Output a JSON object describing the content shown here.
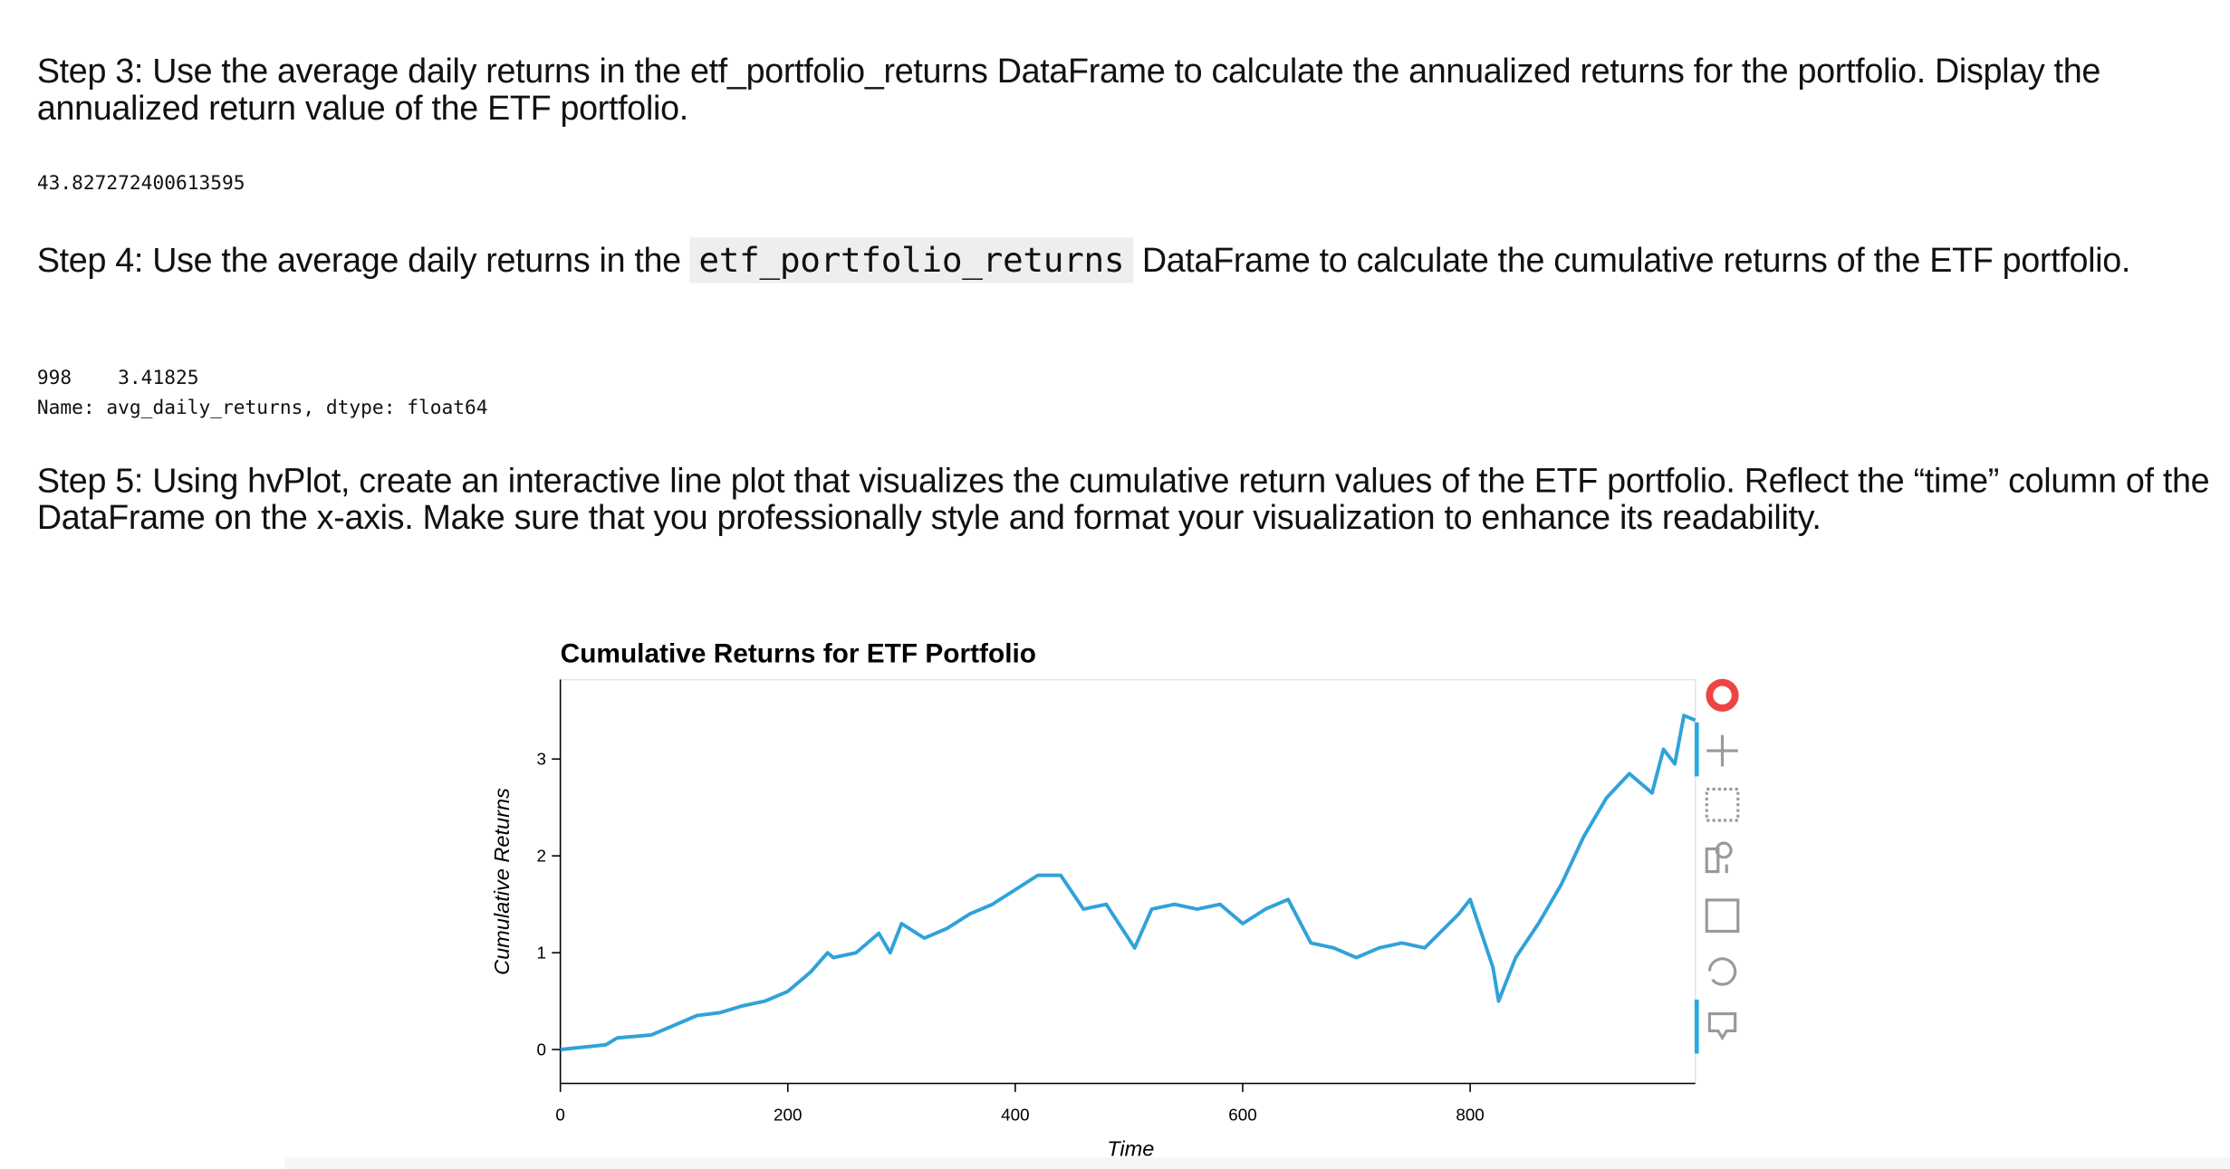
{
  "step3": {
    "heading": "Step 3: Use the average daily returns in the etf_portfolio_returns DataFrame to calculate the annualized returns for the portfolio. Display the annualized return value of the ETF portfolio.",
    "output": "43.827272400613595"
  },
  "step4": {
    "heading": [
      "Step 4: Use the average daily returns in the ",
      "etf_portfolio_returns",
      " DataFrame to calculate the cumulative returns of the ETF portfolio."
    ],
    "output": [
      "998    3.41825",
      "Name: avg_daily_returns, dtype: float64"
    ]
  },
  "step5": {
    "heading": "Step 5: Using hvPlot, create an interactive line plot that visualizes the cumulative return values of the ETF portfolio. Reflect the “time” column of the DataFrame on the x-axis. Make sure that you professionally style and format your visualization to enhance its readability."
  },
  "chart_data": {
    "type": "line",
    "title": "Cumulative Returns for ETF Portfolio",
    "x_label": "Time",
    "y_label": "Cumulative Returns",
    "series": [
      {
        "name": "avg_daily_returns",
        "color": "#30a2da",
        "x": [
          0,
          40,
          50,
          80,
          100,
          120,
          140,
          160,
          180,
          200,
          220,
          235,
          240,
          260,
          280,
          290,
          300,
          320,
          340,
          360,
          380,
          400,
          420,
          440,
          460,
          480,
          505,
          520,
          540,
          560,
          580,
          600,
          620,
          640,
          660,
          680,
          700,
          720,
          740,
          760,
          790,
          800,
          820,
          825,
          840,
          860,
          880,
          900,
          920,
          940,
          960,
          970,
          980,
          988,
          998
        ],
        "values": [
          0,
          0.05,
          0.12,
          0.15,
          0.25,
          0.35,
          0.38,
          0.45,
          0.5,
          0.6,
          0.8,
          1.0,
          0.95,
          1.0,
          1.2,
          1.0,
          1.3,
          1.15,
          1.25,
          1.4,
          1.5,
          1.65,
          1.8,
          1.8,
          1.45,
          1.5,
          1.05,
          1.45,
          1.5,
          1.45,
          1.5,
          1.3,
          1.45,
          1.55,
          1.1,
          1.05,
          0.95,
          1.05,
          1.1,
          1.05,
          1.4,
          1.55,
          0.85,
          0.5,
          0.95,
          1.3,
          1.7,
          2.2,
          2.6,
          2.85,
          2.65,
          3.1,
          2.95,
          3.45,
          3.4
        ]
      }
    ],
    "xlim": [
      0,
      998
    ],
    "ylim": [
      -0.35,
      3.82
    ],
    "xticks": [
      0,
      200,
      400,
      600,
      800
    ],
    "yticks": [
      0,
      1,
      2,
      3
    ],
    "grid": false
  }
}
